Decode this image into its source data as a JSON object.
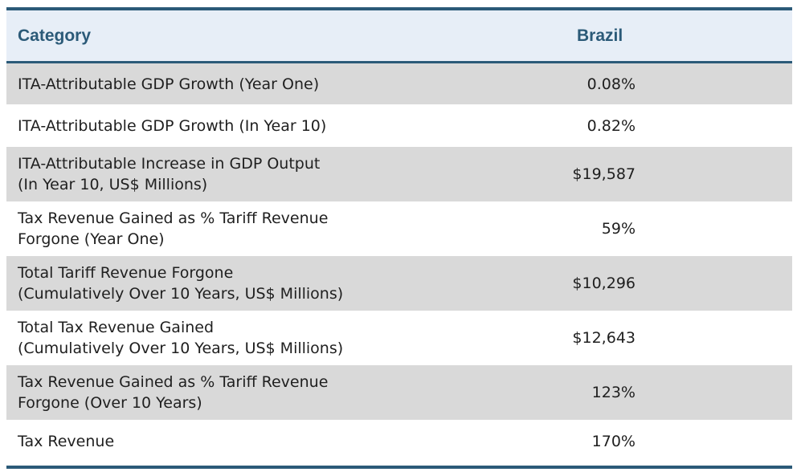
{
  "chart_data": {
    "type": "table",
    "columns": [
      "Category",
      "Brazil"
    ],
    "rows": [
      {
        "category": "ITA-Attributable GDP Growth (Year One)",
        "value": "0.08%"
      },
      {
        "category": "ITA-Attributable GDP Growth (In Year 10)",
        "value": "0.82%"
      },
      {
        "category": "ITA-Attributable Increase in GDP Output\n(In Year 10, US$ Millions)",
        "value": "$19,587"
      },
      {
        "category": "Tax Revenue Gained as % Tariff Revenue\nForgone (Year One)",
        "value": "59%"
      },
      {
        "category": "Total Tariff Revenue Forgone\n(Cumulatively Over 10 Years, US$ Millions)",
        "value": "$10,296"
      },
      {
        "category": "Total Tax Revenue Gained\n(Cumulatively Over 10 Years, US$ Millions)",
        "value": "$12,643"
      },
      {
        "category": "Tax Revenue Gained as % Tariff Revenue\nForgone (Over 10 Years)",
        "value": "123%"
      },
      {
        "category": "Tax Revenue",
        "value": "170%"
      }
    ]
  },
  "colors": {
    "header_text": "#2b5a78",
    "rule": "#2b5a78",
    "header_bg": "#e7eef7",
    "row_gray": "#d9d9d9",
    "row_white": "#ffffff"
  }
}
